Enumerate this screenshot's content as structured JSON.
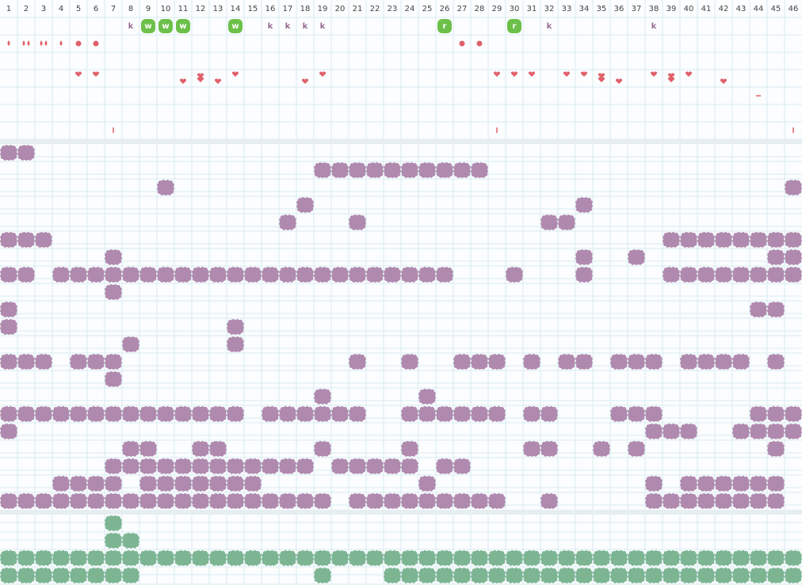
{
  "header": {
    "columns": [
      1,
      2,
      3,
      4,
      5,
      6,
      7,
      8,
      9,
      10,
      11,
      12,
      13,
      14,
      15,
      16,
      17,
      18,
      19,
      20,
      21,
      22,
      23,
      24,
      25,
      26,
      27,
      28,
      29,
      30,
      31,
      32,
      33,
      34,
      35,
      36,
      37,
      38,
      39,
      40,
      41,
      42,
      43,
      44,
      45,
      46
    ]
  },
  "top": {
    "letters": [
      null,
      null,
      null,
      null,
      null,
      null,
      null,
      "k",
      "w",
      "w",
      "w",
      null,
      null,
      "w",
      null,
      "k",
      "k",
      "k",
      "k",
      null,
      null,
      null,
      null,
      null,
      null,
      "r",
      null,
      null,
      null,
      "r",
      null,
      "k",
      null,
      null,
      null,
      null,
      null,
      "k",
      null,
      null,
      null,
      null,
      null,
      null,
      null,
      null
    ]
  }
}
